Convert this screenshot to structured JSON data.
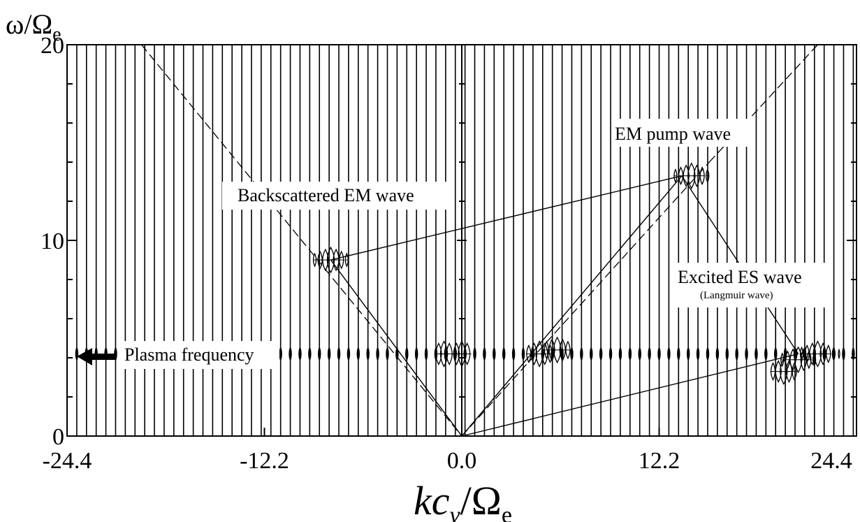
{
  "chart_data": {
    "type": "line",
    "description_style": "dispersion-diagram",
    "xlabel_main": "kc",
    "xlabel_sub": "v",
    "xlabel_tail": "/Ω",
    "xlabel_tail_sub": "e",
    "ylabel_main": "ω/Ω",
    "ylabel_sub": "e",
    "xlim": [
      -24.4,
      24.4
    ],
    "ylim": [
      0,
      20
    ],
    "x_ticks": [
      "-24.4",
      "-12.2",
      "0.0",
      "12.2",
      "24.4"
    ],
    "x_tick_values": [
      -24.4,
      -12.2,
      0.0,
      12.2,
      24.4
    ],
    "y_ticks": [
      "0",
      "10",
      "20"
    ],
    "y_tick_values": [
      0,
      10,
      20
    ],
    "y_minor_step": 2,
    "x_grid_step": 0.6,
    "plasma_frequency": 4.2,
    "dispersion_left": [
      [
        -19.8,
        20
      ],
      [
        0,
        0
      ]
    ],
    "dispersion_right": [
      [
        0,
        0
      ],
      [
        15.3,
        14.0
      ]
    ],
    "features": [
      {
        "k": -8.1,
        "w": 9.0,
        "strength": 3
      },
      {
        "k": 14.2,
        "w": 13.3,
        "strength": 3
      },
      {
        "k": 22.0,
        "w": 4.2,
        "strength": 4
      },
      {
        "k": 20.8,
        "w": 3.9,
        "strength": 3
      },
      {
        "k": 19.9,
        "w": 3.3,
        "strength": 2
      },
      {
        "k": 4.8,
        "w": 4.2,
        "strength": 2
      },
      {
        "k": 5.9,
        "w": 4.4,
        "strength": 2
      },
      {
        "k": 0.0,
        "w": 4.2,
        "strength": 1
      },
      {
        "k": -1.1,
        "w": 4.2,
        "strength": 1
      }
    ],
    "annotations": [
      {
        "text": "EM pump wave",
        "target": [
          13.6,
          13.3
        ]
      },
      {
        "text": "Backscattered EM wave",
        "target": [
          -8.1,
          9.0
        ]
      },
      {
        "text": "Excited ES wave",
        "target": [
          20.8,
          4.2
        ]
      },
      {
        "text": "(Langmuir wave)"
      },
      {
        "text": "Plasma frequency"
      }
    ]
  }
}
